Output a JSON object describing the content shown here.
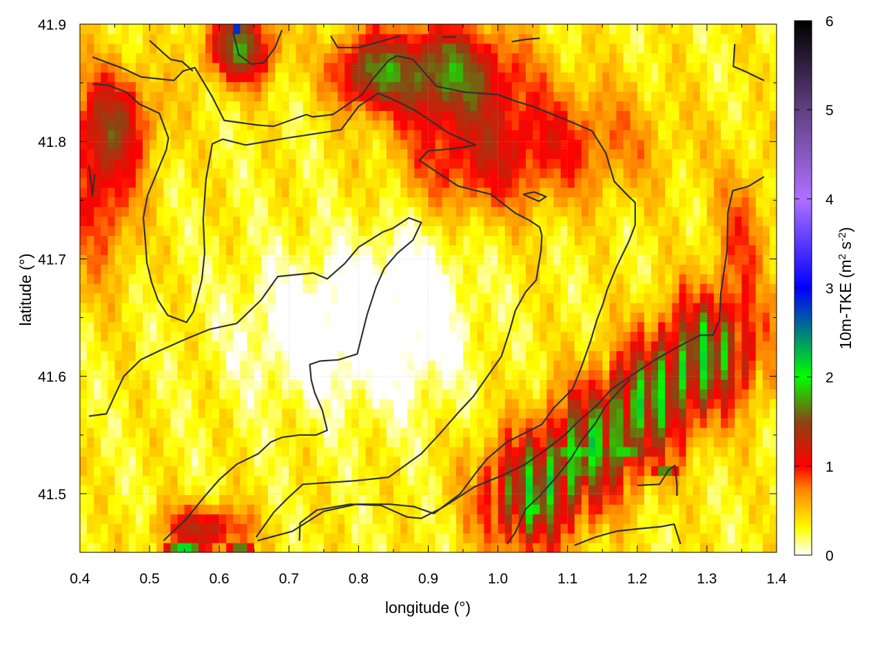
{
  "chart_data": {
    "type": "heatmap",
    "xlabel": "longitude (°)",
    "ylabel": "latitude (°)",
    "colorbar_label": "10m-TKE (m² s⁻²)",
    "colorbar_label_parts": {
      "base": "10m-TKE (m",
      "sup1": "2",
      "mid": " s",
      "sup2": "-2",
      "end": ")"
    },
    "xlim": [
      0.4,
      1.4
    ],
    "ylim": [
      41.45,
      41.9
    ],
    "x_ticks": [
      "0.4",
      "0.5",
      "0.6",
      "0.7",
      "0.8",
      "0.9",
      "1.0",
      "1.1",
      "1.2",
      "1.3",
      "1.4"
    ],
    "x_tick_values": [
      0.4,
      0.5,
      0.6,
      0.7,
      0.8,
      0.9,
      1.0,
      1.1,
      1.2,
      1.3,
      1.4
    ],
    "y_ticks": [
      "41.5",
      "41.6",
      "41.7",
      "41.8",
      "41.9"
    ],
    "y_tick_values": [
      41.5,
      41.6,
      41.7,
      41.8,
      41.9
    ],
    "cb_ticks": [
      "0",
      "1",
      "2",
      "3",
      "4",
      "5",
      "6"
    ],
    "cb_tick_values": [
      0,
      1,
      2,
      3,
      4,
      5,
      6
    ],
    "cb_range": [
      0,
      6
    ],
    "grid": true,
    "palette": [
      {
        "v": 0.0,
        "color": "#ffffff"
      },
      {
        "v": 0.3,
        "color": "#ffff00"
      },
      {
        "v": 0.75,
        "color": "#ff8000"
      },
      {
        "v": 1.0,
        "color": "#ff0000"
      },
      {
        "v": 1.5,
        "color": "#8b4513"
      },
      {
        "v": 2.0,
        "color": "#00ff00"
      },
      {
        "v": 3.0,
        "color": "#0000ff"
      },
      {
        "v": 4.0,
        "color": "#b070ff"
      },
      {
        "v": 5.0,
        "color": "#604080"
      },
      {
        "v": 6.0,
        "color": "#000000"
      }
    ],
    "field_hotspots": [
      {
        "lon": 0.43,
        "lat": 41.77,
        "amp": 0.8,
        "rx": 0.05,
        "ry": 0.08
      },
      {
        "lon": 0.46,
        "lat": 41.82,
        "amp": 0.6,
        "rx": 0.06,
        "ry": 0.04
      },
      {
        "lon": 0.63,
        "lat": 41.88,
        "amp": 1.3,
        "rx": 0.05,
        "ry": 0.03
      },
      {
        "lon": 0.92,
        "lat": 41.86,
        "amp": 1.3,
        "rx": 0.1,
        "ry": 0.04
      },
      {
        "lon": 0.81,
        "lat": 41.86,
        "amp": 0.9,
        "rx": 0.05,
        "ry": 0.03
      },
      {
        "lon": 1.08,
        "lat": 41.8,
        "amp": 0.6,
        "rx": 0.15,
        "ry": 0.05
      },
      {
        "lon": 0.95,
        "lat": 41.78,
        "amp": 0.5,
        "rx": 0.1,
        "ry": 0.05
      },
      {
        "lon": 0.58,
        "lat": 41.47,
        "amp": 1.0,
        "rx": 0.06,
        "ry": 0.02
      },
      {
        "lon": 1.35,
        "lat": 41.72,
        "amp": 0.5,
        "rx": 0.04,
        "ry": 0.06
      }
    ],
    "field_band": {
      "lon0": 1.05,
      "lat0": 41.5,
      "lon1": 1.3,
      "lat1": 41.62,
      "amp": 1.8,
      "width": 0.05
    },
    "field_green": [
      {
        "lon": 1.05,
        "lat": 41.49,
        "amp": 2.1,
        "rx": 0.03,
        "ry": 0.025
      },
      {
        "lon": 1.11,
        "lat": 41.53,
        "amp": 2.1,
        "rx": 0.05,
        "ry": 0.025
      },
      {
        "lon": 1.18,
        "lat": 41.54,
        "amp": 2.0,
        "rx": 0.05,
        "ry": 0.02
      },
      {
        "lon": 1.24,
        "lat": 41.52,
        "amp": 1.8,
        "rx": 0.02,
        "ry": 0.01
      },
      {
        "lon": 1.28,
        "lat": 41.61,
        "amp": 1.7,
        "rx": 0.03,
        "ry": 0.02
      },
      {
        "lon": 0.63,
        "lat": 41.89,
        "amp": 2.2,
        "rx": 0.015,
        "ry": 0.012
      },
      {
        "lon": 0.93,
        "lat": 41.88,
        "amp": 1.9,
        "rx": 0.015,
        "ry": 0.012
      },
      {
        "lon": 0.55,
        "lat": 41.455,
        "amp": 2.5,
        "rx": 0.03,
        "ry": 0.006
      },
      {
        "lon": 0.63,
        "lat": 41.455,
        "amp": 2.0,
        "rx": 0.02,
        "ry": 0.006
      }
    ],
    "field_blue": [
      {
        "lon": 0.627,
        "lat": 41.896,
        "amp": 3.0,
        "rx": 0.008,
        "ry": 0.007
      },
      {
        "lon": 0.555,
        "lat": 41.452,
        "amp": 3.0,
        "rx": 0.012,
        "ry": 0.003
      },
      {
        "lon": 0.43,
        "lat": 41.73,
        "amp": 1.0,
        "rx": 0.005,
        "ry": 0.004
      }
    ],
    "field_quiet": [
      {
        "lon": 0.75,
        "lat": 41.64,
        "amp": -0.5,
        "rx": 0.12,
        "ry": 0.06
      },
      {
        "lon": 0.88,
        "lat": 41.66,
        "amp": -0.4,
        "rx": 0.08,
        "ry": 0.08
      }
    ],
    "contours": [
      [
        [
          0.418,
          41.872
        ],
        [
          0.463,
          41.862
        ],
        [
          0.488,
          41.855
        ],
        [
          0.535,
          41.852
        ],
        [
          0.548,
          41.86
        ],
        [
          0.565,
          41.863
        ],
        [
          0.59,
          41.838
        ],
        [
          0.607,
          41.818
        ],
        [
          0.655,
          41.814
        ],
        [
          0.678,
          41.813
        ],
        [
          0.725,
          41.823
        ],
        [
          0.734,
          41.821
        ],
        [
          0.763,
          41.823
        ],
        [
          0.805,
          41.84
        ],
        [
          0.82,
          41.853
        ],
        [
          0.843,
          41.869
        ],
        [
          0.855,
          41.873
        ],
        [
          0.878,
          41.87
        ],
        [
          0.897,
          41.857
        ],
        [
          0.912,
          41.847
        ],
        [
          0.953,
          41.842
        ],
        [
          1.0,
          41.84
        ],
        [
          1.027,
          41.834
        ],
        [
          1.05,
          41.83
        ],
        [
          1.1,
          41.818
        ],
        [
          1.135,
          41.809
        ],
        [
          1.155,
          41.79
        ],
        [
          1.167,
          41.766
        ],
        [
          1.188,
          41.753
        ],
        [
          1.197,
          41.748
        ],
        [
          1.197,
          41.729
        ],
        [
          1.188,
          41.715
        ],
        [
          1.17,
          41.693
        ],
        [
          1.157,
          41.674
        ],
        [
          1.151,
          41.662
        ],
        [
          1.142,
          41.648
        ],
        [
          1.133,
          41.63
        ],
        [
          1.12,
          41.608
        ],
        [
          1.107,
          41.589
        ],
        [
          1.08,
          41.573
        ],
        [
          1.063,
          41.559
        ],
        [
          1.013,
          41.544
        ],
        [
          0.985,
          41.53
        ],
        [
          0.97,
          41.519
        ],
        [
          0.946,
          41.5
        ],
        [
          0.908,
          41.483
        ],
        [
          0.879,
          41.489
        ],
        [
          0.845,
          41.491
        ],
        [
          0.797,
          41.491
        ],
        [
          0.75,
          41.485
        ],
        [
          0.705,
          41.468
        ],
        [
          0.655,
          41.46
        ]
      ],
      [
        [
          0.418,
          41.849
        ],
        [
          0.44,
          41.848
        ],
        [
          0.467,
          41.842
        ],
        [
          0.485,
          41.832
        ],
        [
          0.514,
          41.824
        ],
        [
          0.527,
          41.803
        ],
        [
          0.524,
          41.793
        ],
        [
          0.497,
          41.754
        ],
        [
          0.491,
          41.735
        ],
        [
          0.494,
          41.715
        ],
        [
          0.496,
          41.697
        ],
        [
          0.503,
          41.68
        ],
        [
          0.512,
          41.665
        ],
        [
          0.526,
          41.652
        ],
        [
          0.553,
          41.646
        ],
        [
          0.563,
          41.655
        ],
        [
          0.575,
          41.682
        ],
        [
          0.579,
          41.705
        ],
        [
          0.577,
          41.734
        ],
        [
          0.581,
          41.768
        ],
        [
          0.59,
          41.798
        ],
        [
          0.605,
          41.802
        ],
        [
          0.638,
          41.797
        ],
        [
          0.698,
          41.803
        ],
        [
          0.775,
          41.81
        ],
        [
          0.8,
          41.83
        ],
        [
          0.828,
          41.841
        ],
        [
          0.845,
          41.837
        ],
        [
          0.88,
          41.827
        ],
        [
          0.93,
          41.807
        ],
        [
          0.968,
          41.797
        ],
        [
          0.938,
          41.794
        ],
        [
          0.9,
          41.792
        ],
        [
          0.887,
          41.784
        ],
        [
          0.92,
          41.771
        ],
        [
          0.943,
          41.762
        ],
        [
          0.99,
          41.755
        ],
        [
          1.025,
          41.739
        ],
        [
          1.045,
          41.733
        ],
        [
          1.06,
          41.727
        ],
        [
          1.063,
          41.72
        ],
        [
          1.062,
          41.708
        ],
        [
          1.055,
          41.682
        ],
        [
          1.04,
          41.672
        ],
        [
          1.025,
          41.656
        ],
        [
          1.017,
          41.639
        ],
        [
          1.005,
          41.617
        ],
        [
          0.985,
          41.6
        ],
        [
          0.965,
          41.583
        ],
        [
          0.943,
          41.569
        ],
        [
          0.918,
          41.552
        ],
        [
          0.89,
          41.534
        ],
        [
          0.843,
          41.514
        ],
        [
          0.795,
          41.511
        ],
        [
          0.72,
          41.508
        ],
        [
          0.698,
          41.496
        ],
        [
          0.678,
          41.484
        ],
        [
          0.653,
          41.463
        ]
      ],
      [
        [
          0.413,
          41.566
        ],
        [
          0.438,
          41.568
        ],
        [
          0.451,
          41.585
        ],
        [
          0.463,
          41.6
        ],
        [
          0.487,
          41.614
        ],
        [
          0.515,
          41.622
        ],
        [
          0.553,
          41.632
        ],
        [
          0.586,
          41.64
        ],
        [
          0.625,
          41.645
        ],
        [
          0.66,
          41.665
        ],
        [
          0.684,
          41.685
        ],
        [
          0.735,
          41.688
        ],
        [
          0.755,
          41.683
        ],
        [
          0.78,
          41.696
        ],
        [
          0.8,
          41.71
        ],
        [
          0.835,
          41.723
        ],
        [
          0.849,
          41.726
        ],
        [
          0.872,
          41.735
        ],
        [
          0.89,
          41.731
        ],
        [
          0.878,
          41.716
        ],
        [
          0.856,
          41.705
        ],
        [
          0.837,
          41.692
        ],
        [
          0.825,
          41.676
        ],
        [
          0.812,
          41.652
        ],
        [
          0.798,
          41.619
        ],
        [
          0.771,
          41.614
        ],
        [
          0.745,
          41.613
        ],
        [
          0.73,
          41.61
        ],
        [
          0.732,
          41.597
        ],
        [
          0.737,
          41.586
        ],
        [
          0.748,
          41.571
        ],
        [
          0.755,
          41.554
        ],
        [
          0.739,
          41.55
        ],
        [
          0.715,
          41.55
        ],
        [
          0.69,
          41.548
        ],
        [
          0.674,
          41.544
        ],
        [
          0.656,
          41.534
        ],
        [
          0.625,
          41.525
        ],
        [
          0.6,
          41.512
        ],
        [
          0.578,
          41.497
        ],
        [
          0.552,
          41.478
        ],
        [
          0.52,
          41.46
        ]
      ],
      [
        [
          0.715,
          41.46
        ],
        [
          0.716,
          41.475
        ],
        [
          0.74,
          41.486
        ],
        [
          0.788,
          41.491
        ],
        [
          0.832,
          41.49
        ],
        [
          0.87,
          41.48
        ],
        [
          0.89,
          41.479
        ],
        [
          0.92,
          41.488
        ],
        [
          0.967,
          41.506
        ],
        [
          1.008,
          41.516
        ],
        [
          1.039,
          41.525
        ],
        [
          1.07,
          41.538
        ],
        [
          1.096,
          41.55
        ],
        [
          1.118,
          41.563
        ],
        [
          1.142,
          41.575
        ],
        [
          1.163,
          41.589
        ],
        [
          1.185,
          41.598
        ],
        [
          1.223,
          41.613
        ],
        [
          1.255,
          41.624
        ],
        [
          1.29,
          41.635
        ],
        [
          1.309,
          41.635
        ],
        [
          1.318,
          41.648
        ],
        [
          1.32,
          41.671
        ],
        [
          1.329,
          41.707
        ],
        [
          1.33,
          41.739
        ],
        [
          1.337,
          41.758
        ],
        [
          1.36,
          41.762
        ],
        [
          1.382,
          41.77
        ]
      ],
      [
        [
          0.413,
          41.78
        ],
        [
          0.418,
          41.754
        ],
        [
          0.421,
          41.772
        ]
      ],
      [
        [
          1.036,
          41.755
        ],
        [
          1.052,
          41.757
        ],
        [
          1.069,
          41.753
        ],
        [
          1.059,
          41.749
        ],
        [
          1.036,
          41.755
        ]
      ],
      [
        [
          0.5,
          41.886
        ],
        [
          0.53,
          41.87
        ],
        [
          0.547,
          41.868
        ],
        [
          0.562,
          41.86
        ]
      ],
      [
        [
          0.62,
          41.893
        ],
        [
          0.628,
          41.874
        ],
        [
          0.646,
          41.866
        ],
        [
          0.664,
          41.867
        ],
        [
          0.68,
          41.88
        ],
        [
          0.69,
          41.895
        ]
      ],
      [
        [
          0.76,
          41.89
        ],
        [
          0.77,
          41.88
        ],
        [
          0.8,
          41.88
        ],
        [
          0.86,
          41.89
        ]
      ],
      [
        [
          0.92,
          41.889
        ],
        [
          0.94,
          41.889
        ]
      ],
      [
        [
          1.02,
          41.885
        ],
        [
          1.04,
          41.887
        ],
        [
          1.06,
          41.888
        ]
      ],
      [
        [
          1.34,
          41.883
        ],
        [
          1.338,
          41.864
        ],
        [
          1.354,
          41.86
        ],
        [
          1.382,
          41.852
        ]
      ],
      [
        [
          1.013,
          41.457
        ],
        [
          1.025,
          41.467
        ],
        [
          1.04,
          41.487
        ],
        [
          1.06,
          41.498
        ],
        [
          1.085,
          41.515
        ],
        [
          1.105,
          41.53
        ],
        [
          1.12,
          41.545
        ],
        [
          1.14,
          41.56
        ],
        [
          1.155,
          41.575
        ],
        [
          1.17,
          41.585
        ],
        [
          1.19,
          41.598
        ]
      ],
      [
        [
          1.2,
          41.507
        ],
        [
          1.232,
          41.508
        ],
        [
          1.245,
          41.52
        ],
        [
          1.254,
          41.524
        ],
        [
          1.257,
          41.508
        ],
        [
          1.257,
          41.498
        ]
      ],
      [
        [
          1.11,
          41.456
        ],
        [
          1.14,
          41.463
        ],
        [
          1.17,
          41.468
        ],
        [
          1.2,
          41.47
        ],
        [
          1.235,
          41.472
        ],
        [
          1.253,
          41.474
        ],
        [
          1.262,
          41.457
        ]
      ]
    ]
  }
}
